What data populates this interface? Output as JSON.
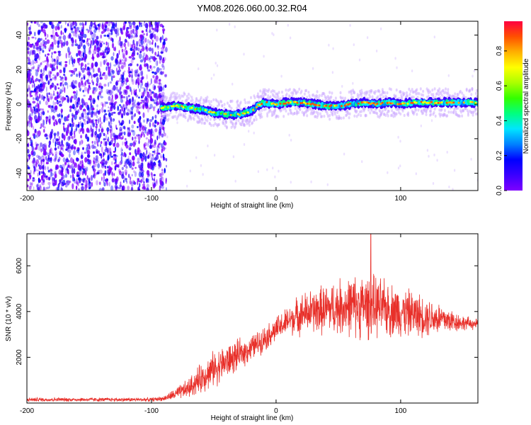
{
  "title": "YM08.2026.060.00.32.R04",
  "colors": {
    "snr_line": "#e8302a",
    "background": "#ffffff",
    "axis": "#000000",
    "colorbar_stops": [
      "#7f00ff",
      "#3b00ff",
      "#0000ff",
      "#0080ff",
      "#00e5ff",
      "#00ff80",
      "#33ff00",
      "#aaff00",
      "#ffff00",
      "#ffb000",
      "#ff5000",
      "#ff0040"
    ]
  },
  "chart_data": [
    {
      "type": "heatmap",
      "title": "YM08.2026.060.00.32.R04",
      "xlabel": "Height of straight line (km)",
      "ylabel": "Frequency (Hz)",
      "xlim": [
        -200,
        162
      ],
      "ylim": [
        -50,
        48
      ],
      "x_ticks": [
        -200,
        -100,
        0,
        100
      ],
      "x_tick_labels": [
        "-200",
        "-100",
        "0",
        "100"
      ],
      "y_ticks": [
        -40,
        -20,
        0,
        20,
        40
      ],
      "y_tick_labels": [
        "-40",
        "-20",
        "0",
        "20",
        "40"
      ],
      "noise_region": {
        "x_start": -200,
        "x_end": -88
      },
      "signal_band_x": [
        -92,
        -80,
        -70,
        -60,
        -50,
        -40,
        -30,
        -20,
        -15,
        -10,
        0,
        10,
        20,
        30,
        40,
        50,
        60,
        70,
        80,
        90,
        100,
        110,
        120,
        130,
        140,
        150,
        162
      ],
      "signal_band_center": [
        -2,
        -1,
        -2,
        -3,
        -5,
        -6,
        -6,
        -4,
        -1,
        1,
        0,
        1,
        1,
        0,
        -1,
        -1,
        0,
        1,
        0,
        1,
        0,
        1,
        1,
        1,
        1,
        1,
        1
      ],
      "colorbar": {
        "label": "Normalized spectral amplitude",
        "range": [
          0.0,
          0.97
        ],
        "ticks": [
          0.0,
          0.2,
          0.4,
          0.6,
          0.8
        ],
        "tick_labels": [
          "0.0",
          "0.2",
          "0.4",
          "0.6",
          "0.8"
        ]
      }
    },
    {
      "type": "line",
      "xlabel": "Height of straight line (km)",
      "ylabel": "SNR (10 * v/v)",
      "xlim": [
        -200,
        162
      ],
      "ylim": [
        0,
        7400
      ],
      "x_ticks": [
        -200,
        -100,
        0,
        100
      ],
      "x_tick_labels": [
        "-200",
        "-100",
        "0",
        "100"
      ],
      "y_ticks": [
        2000,
        4000,
        6000
      ],
      "y_tick_labels": [
        "2000",
        "4000",
        "6000"
      ],
      "series": [
        {
          "name": "SNR",
          "x": [
            -200,
            -150,
            -100,
            -90,
            -80,
            -70,
            -60,
            -50,
            -40,
            -30,
            -20,
            -10,
            0,
            10,
            20,
            30,
            40,
            50,
            60,
            70,
            80,
            90,
            100,
            110,
            120,
            130,
            140,
            150,
            162
          ],
          "mean": [
            150,
            150,
            150,
            200,
            400,
            650,
            1100,
            1500,
            1800,
            2100,
            2400,
            2800,
            3200,
            3600,
            3900,
            4000,
            4100,
            4200,
            4250,
            4250,
            4200,
            4100,
            4000,
            3900,
            3800,
            3700,
            3600,
            3500,
            3450
          ],
          "spread": [
            80,
            80,
            80,
            100,
            250,
            400,
            600,
            700,
            700,
            600,
            500,
            500,
            500,
            600,
            800,
            900,
            1000,
            1100,
            1200,
            1300,
            1200,
            1100,
            1000,
            900,
            800,
            700,
            500,
            300,
            200
          ],
          "peak_x": 76,
          "peak_y": 7400
        }
      ]
    }
  ]
}
